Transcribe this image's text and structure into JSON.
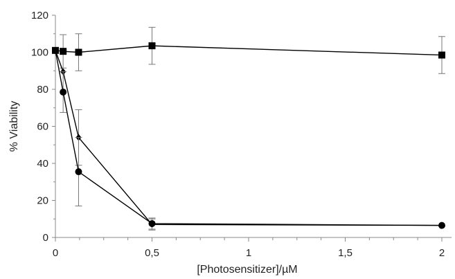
{
  "chart_data": {
    "type": "scatter",
    "xlabel": "[Photosensitizer]/µM",
    "ylabel": "% Viability",
    "xlim": [
      0,
      2
    ],
    "ylim": [
      0,
      120
    ],
    "xticks": [
      0,
      0.5,
      1,
      1.5,
      2
    ],
    "xtick_labels": [
      "0",
      "0,5",
      "1",
      "1,5",
      "2"
    ],
    "yticks": [
      0,
      20,
      40,
      60,
      80,
      100,
      120
    ],
    "ytick_labels": [
      "0",
      "20",
      "40",
      "60",
      "80",
      "100",
      "120"
    ],
    "grid": false,
    "legend": false,
    "series": [
      {
        "marker": "square",
        "x": [
          0,
          0.04,
          0.12,
          0.5,
          2
        ],
        "y": [
          101,
          100.5,
          100,
          103.5,
          98.5
        ],
        "err": [
          0,
          9,
          10,
          10,
          10
        ]
      },
      {
        "marker": "diamond",
        "x": [
          0,
          0.04,
          0.12,
          0.5,
          2
        ],
        "y": [
          101,
          89.5,
          54,
          7,
          6.5
        ],
        "err": [
          0,
          0,
          15,
          3,
          0
        ]
      },
      {
        "marker": "circle",
        "x": [
          0,
          0.04,
          0.12,
          0.5,
          2
        ],
        "y": [
          101,
          78.5,
          35.5,
          7.5,
          6.5
        ],
        "err": [
          0,
          11,
          18.5,
          3,
          0
        ]
      }
    ]
  }
}
